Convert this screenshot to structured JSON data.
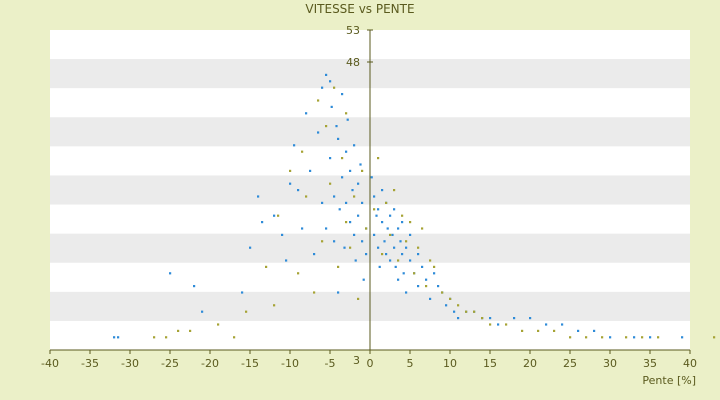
{
  "chart_data": {
    "type": "scatter",
    "title": "VITESSE vs PENTE",
    "xlabel": "Pente [%]",
    "ylabel": "",
    "xlim": [
      -40,
      40
    ],
    "ylim": [
      3,
      53
    ],
    "xticks": [
      "-40",
      "-35",
      "-30",
      "-25",
      "-20",
      "-15",
      "-10",
      "-5",
      "0",
      "5",
      "10",
      "15",
      "20",
      "25",
      "30",
      "35",
      "40"
    ],
    "yticks_labeled": [
      "3",
      "48",
      "53"
    ],
    "grid": "alternating horizontal bands",
    "colors": {
      "series_blue": "#2e8bd8",
      "series_olive": "#a6a335",
      "band": "#ebebeb",
      "axis": "#5a5a1e"
    },
    "series": [
      {
        "color": "#2e8bd8",
        "x": [
          -32,
          -31.5,
          -25,
          -22,
          -21,
          -16,
          -15,
          -14,
          -13.5,
          -12,
          -11,
          -10.5,
          -10,
          -9.5,
          -9,
          -8.5,
          -8,
          -7.5,
          -7,
          -6.5,
          -6,
          -6,
          -5.5,
          -5.5,
          -5,
          -5,
          -4.8,
          -4.5,
          -4.5,
          -4.2,
          -4,
          -4,
          -3.8,
          -3.5,
          -3.5,
          -3.2,
          -3,
          -3,
          -2.8,
          -2.5,
          -2.5,
          -2.2,
          -2,
          -2,
          -1.8,
          -1.5,
          -1.5,
          -1.2,
          -1,
          -1,
          -0.8,
          -0.5,
          -0.5,
          0.2,
          0.5,
          0.5,
          0.8,
          1,
          1,
          1.2,
          1.5,
          1.5,
          1.8,
          2,
          2,
          2.2,
          2.5,
          2.5,
          2.8,
          3,
          3,
          3.2,
          3.5,
          3.5,
          3.8,
          4,
          4,
          4.2,
          4.5,
          4.5,
          5,
          5,
          5.5,
          6,
          6,
          6.5,
          7,
          7.5,
          8,
          8.5,
          9,
          9.5,
          10,
          10.5,
          11,
          12,
          13,
          14,
          15,
          16,
          18,
          20,
          22,
          24,
          26,
          28,
          30,
          33,
          35,
          39
        ],
        "y": [
          5,
          5,
          15,
          13,
          9,
          12,
          19,
          27,
          23,
          24,
          21,
          17,
          29,
          35,
          28,
          22,
          40,
          31,
          18,
          37,
          44,
          26,
          46,
          22,
          45,
          33,
          41,
          20,
          27,
          38,
          36,
          12,
          25,
          43,
          30,
          19,
          34,
          26,
          39,
          23,
          31,
          28,
          21,
          35,
          17,
          29,
          24,
          32,
          20,
          26,
          14,
          22,
          18,
          30,
          27,
          21,
          24,
          19,
          25,
          16,
          23,
          28,
          20,
          26,
          18,
          22,
          24,
          17,
          21,
          19,
          25,
          16,
          22,
          14,
          20,
          18,
          23,
          15,
          19,
          12,
          17,
          21,
          15,
          18,
          13,
          16,
          14,
          11,
          15,
          13,
          12,
          10,
          11,
          9,
          8,
          9,
          9,
          8,
          8,
          7,
          8,
          8,
          7,
          7,
          6,
          6,
          5,
          5,
          5,
          5
        ]
      },
      {
        "color": "#a6a335",
        "x": [
          -27,
          -25.5,
          -24,
          -22.5,
          -19,
          -17,
          -15.5,
          -13,
          -12,
          -11.5,
          -10,
          -9,
          -8.5,
          -8,
          -7,
          -6.5,
          -6,
          -5.5,
          -5,
          -4.5,
          -4,
          -3.5,
          -3,
          -3,
          -2.5,
          -2,
          -1.5,
          -1,
          -0.5,
          0.5,
          1,
          1.5,
          2,
          2.5,
          3,
          3.5,
          4,
          4.5,
          5,
          5.5,
          6,
          6.5,
          7,
          7.5,
          8,
          9,
          10,
          11,
          12,
          13,
          14,
          15,
          17,
          19,
          21,
          23,
          25,
          27,
          29,
          32,
          34,
          36,
          43
        ],
        "y": [
          5,
          5,
          6,
          6,
          7,
          5,
          9,
          16,
          10,
          24,
          31,
          15,
          34,
          27,
          12,
          42,
          20,
          38,
          29,
          44,
          16,
          33,
          23,
          40,
          19,
          27,
          11,
          31,
          22,
          25,
          33,
          18,
          26,
          21,
          28,
          17,
          24,
          20,
          23,
          15,
          19,
          22,
          13,
          17,
          16,
          12,
          11,
          10,
          9,
          9,
          8,
          7,
          7,
          6,
          6,
          6,
          5,
          5,
          5,
          5,
          5,
          5,
          5
        ]
      }
    ]
  }
}
